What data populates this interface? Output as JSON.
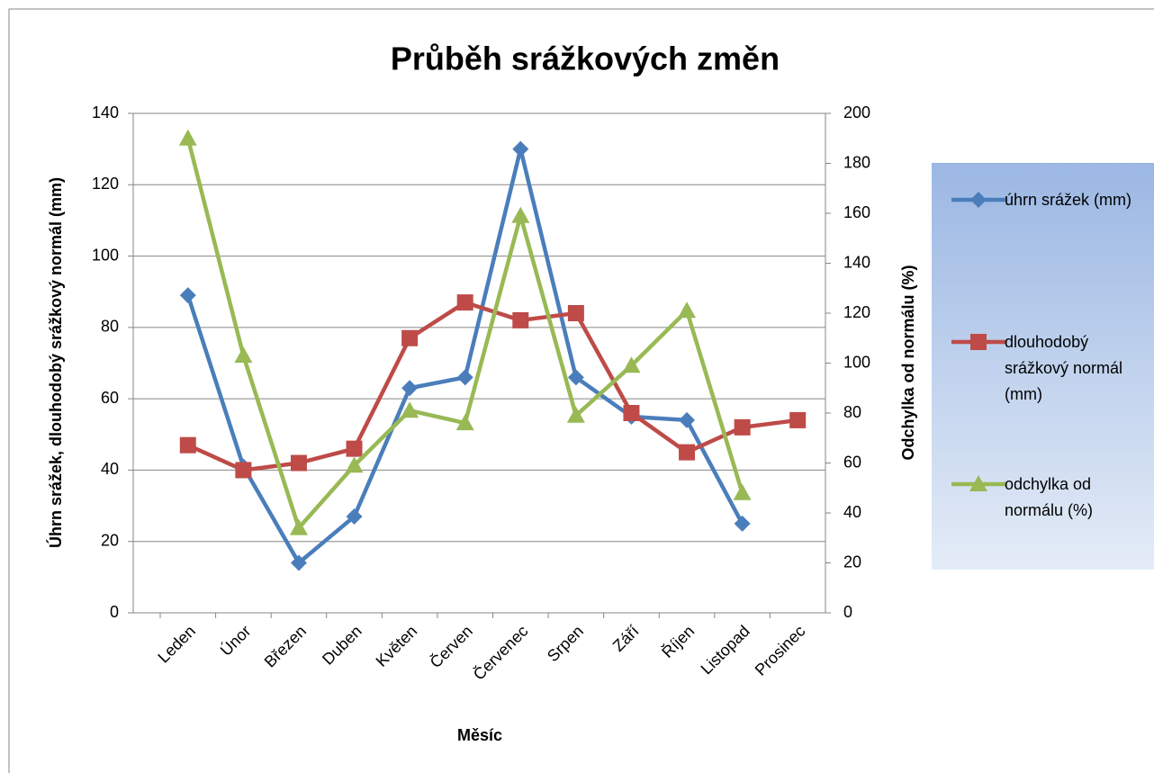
{
  "chart_data": {
    "type": "line",
    "title": "Průběh srážkových změn",
    "x_label": "Měsíc",
    "y_label": "Úhrn srážek, dlouhodobý srážkový normál (mm)",
    "y2_label": "Odchylka od normálu (%)",
    "categories": [
      "Leden",
      "Únor",
      "Březen",
      "Duben",
      "Květen",
      "Červen",
      "Červenec",
      "Srpen",
      "Září",
      "Říjen",
      "Listopad",
      "Prosinec"
    ],
    "series": [
      {
        "name": "úhrn srážek (mm)",
        "color": "#4a7ebb",
        "marker": "diamond",
        "values": [
          89,
          41,
          14,
          27,
          63,
          66,
          130,
          66,
          55,
          54,
          25,
          null
        ]
      },
      {
        "name": "dlouhodobý srážkový normál (mm)",
        "color": "#be4b48",
        "marker": "square",
        "values": [
          47,
          40,
          42,
          46,
          77,
          87,
          82,
          84,
          56,
          45,
          52,
          54
        ]
      },
      {
        "name": "odchylka od normálu (%)",
        "color": "#98b954",
        "marker": "triangle",
        "axis": "y2",
        "values": [
          190,
          103,
          34,
          59,
          81,
          76,
          159,
          79,
          99,
          121,
          48,
          null
        ]
      }
    ],
    "ylim": [
      0,
      140
    ],
    "yticks": [
      0,
      20,
      40,
      60,
      80,
      100,
      120,
      140
    ],
    "y2lim": [
      0,
      200
    ],
    "y2ticks": [
      0,
      20,
      40,
      60,
      80,
      100,
      120,
      140,
      160,
      180,
      200
    ],
    "grid": true
  }
}
